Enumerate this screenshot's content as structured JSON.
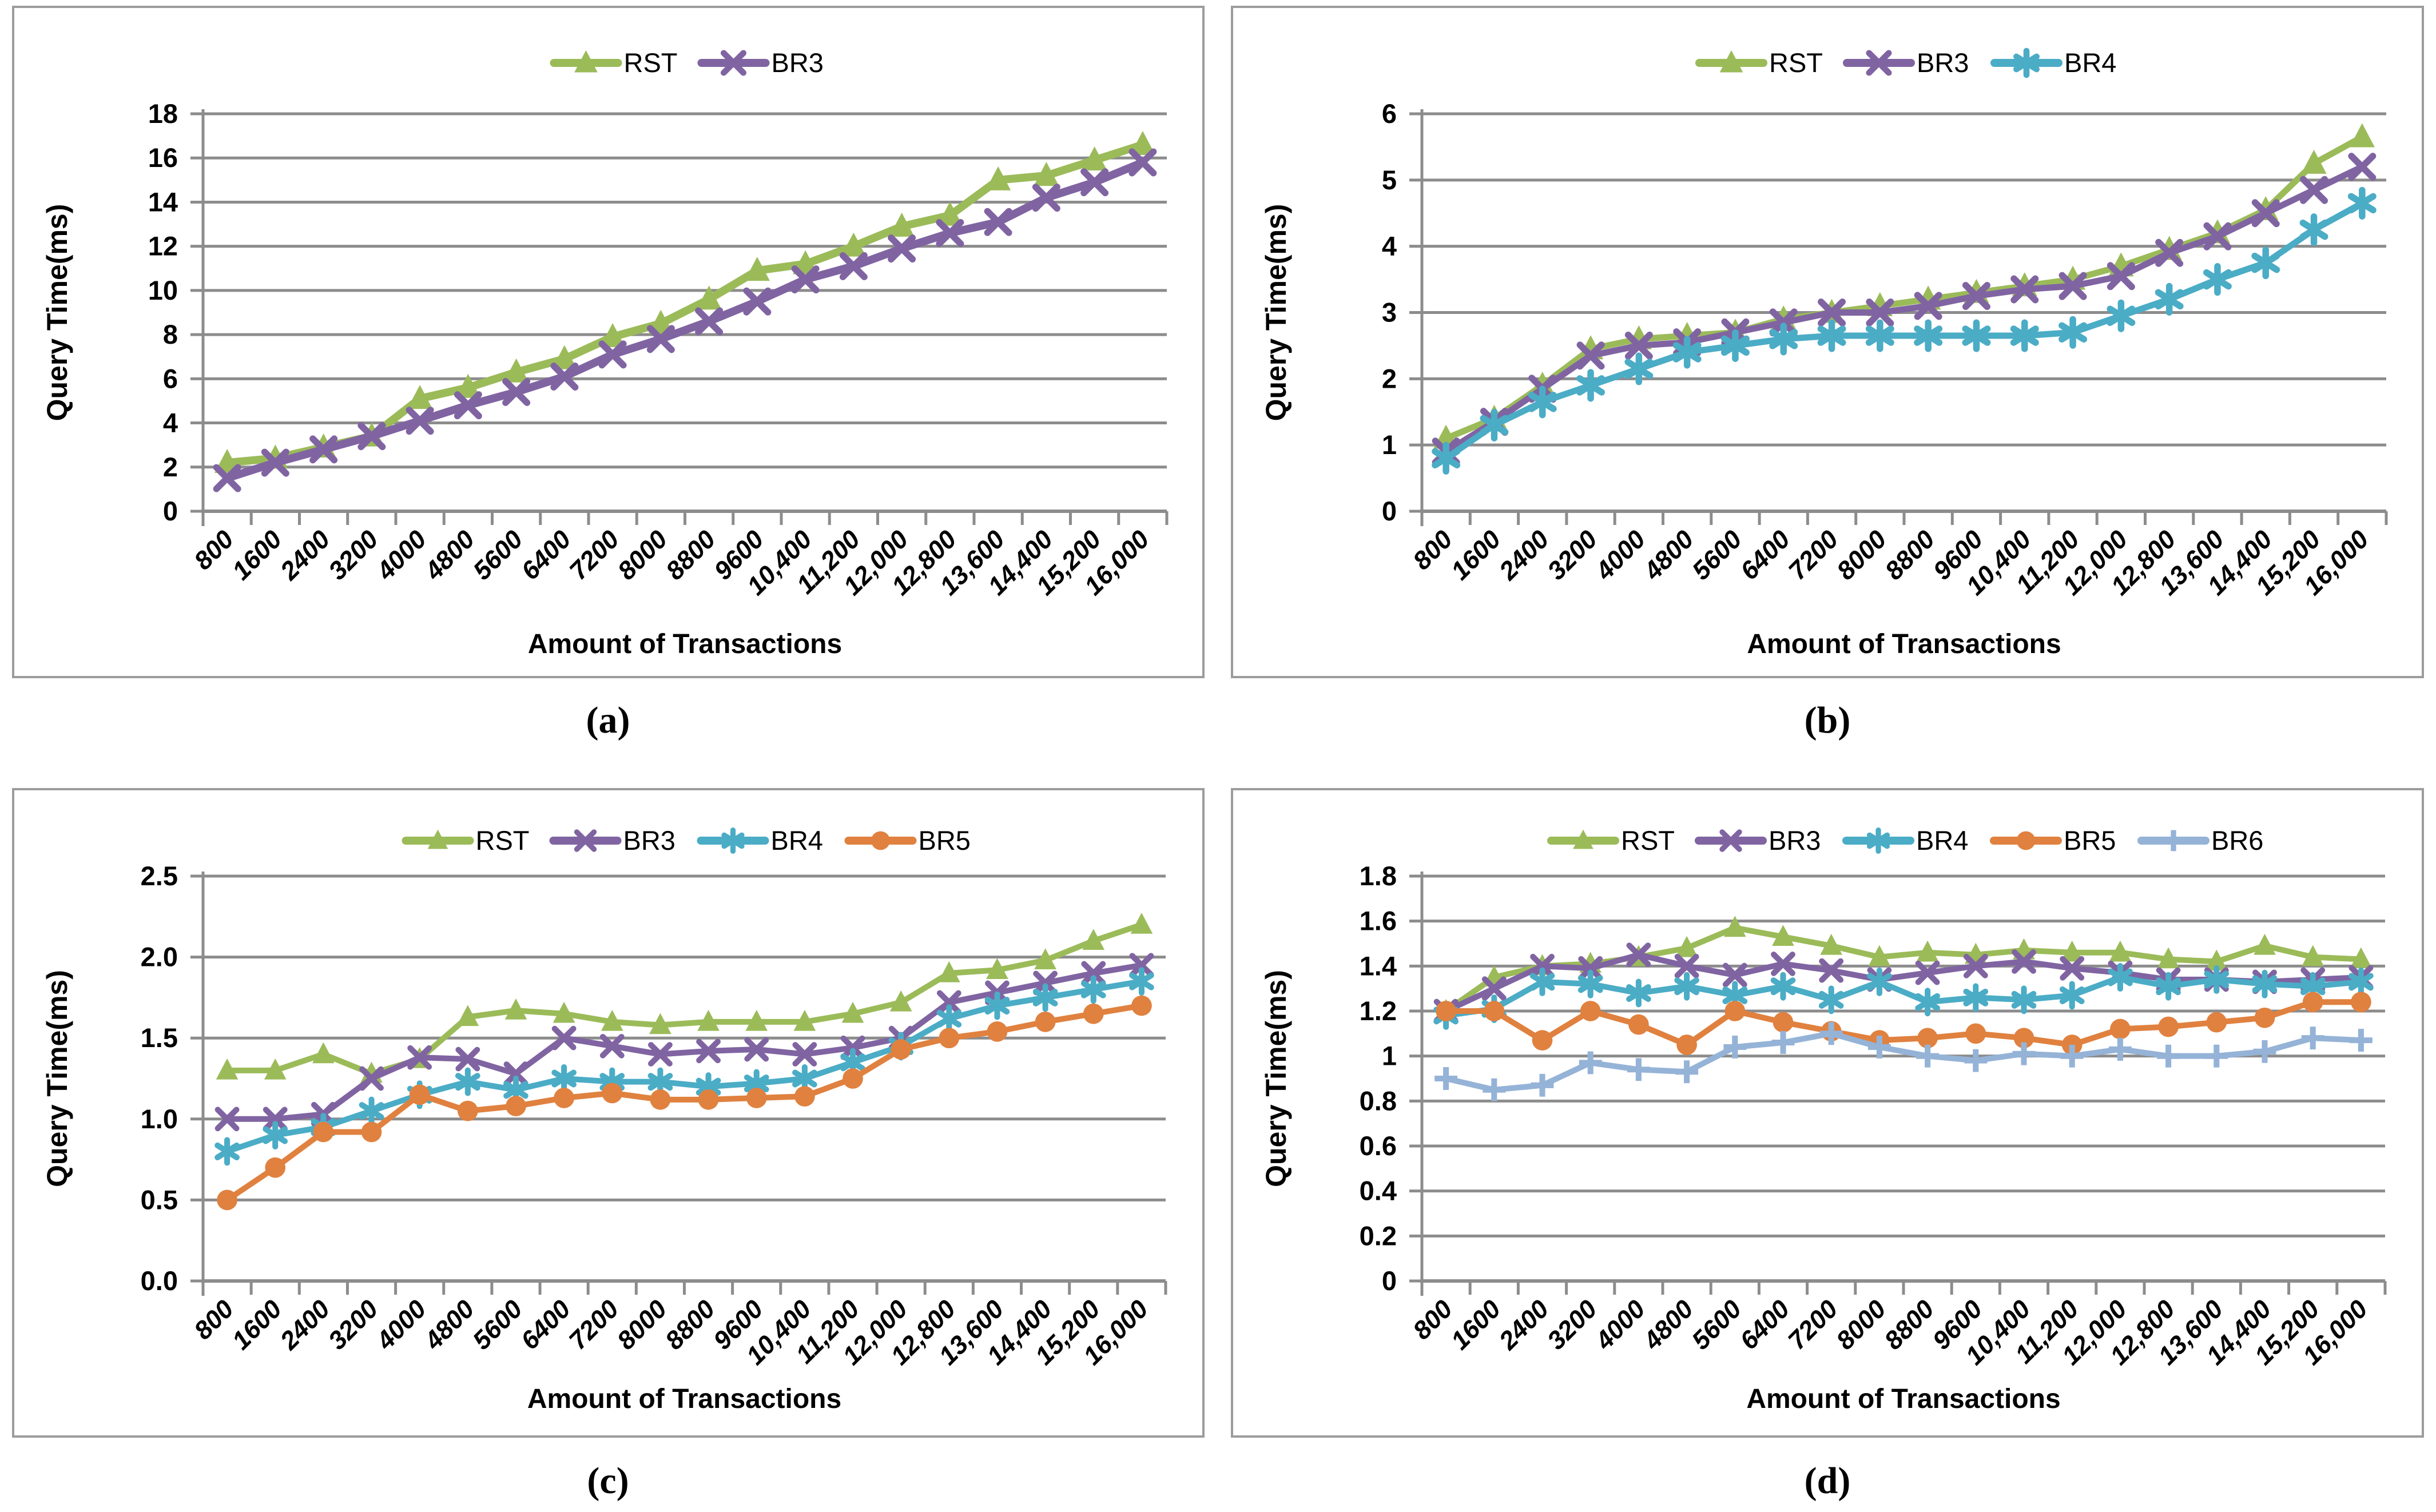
{
  "figure": {
    "background": "#ffffff",
    "grid_color": "#8c8c8c",
    "axis_color": "#8c8c8c",
    "tick_color": "#8c8c8c",
    "panel_border_color": "#9c9c9c",
    "text_color": "#000000"
  },
  "chart_data": [
    {
      "id": "a",
      "caption": "(a)",
      "type": "line",
      "title": "",
      "xlabel": "Amount of Transactions",
      "ylabel": "Query Time(ms)",
      "legend_position": "top-center",
      "grid": "horizontal",
      "ylim": [
        0,
        18
      ],
      "yticks": [
        0,
        2,
        4,
        6,
        8,
        10,
        12,
        14,
        16,
        18
      ],
      "ytick_labels": [
        "0",
        "2",
        "4",
        "6",
        "8",
        "10",
        "12",
        "14",
        "16",
        "18"
      ],
      "categories": [
        "800",
        "1600",
        "2400",
        "3200",
        "4000",
        "4800",
        "5600",
        "6400",
        "7200",
        "8000",
        "8800",
        "9600",
        "10,400",
        "11,200",
        "12,000",
        "12,800",
        "13,600",
        "14,400",
        "15,200",
        "16,000"
      ],
      "series": [
        {
          "name": "RST",
          "color": "#9BBB59",
          "marker": "triangle",
          "values": [
            2.2,
            2.4,
            2.9,
            3.4,
            5.1,
            5.6,
            6.3,
            6.9,
            7.9,
            8.5,
            9.6,
            10.9,
            11.2,
            12.0,
            12.9,
            13.4,
            15.0,
            15.2,
            15.9,
            16.6
          ]
        },
        {
          "name": "BR3",
          "color": "#8064A2",
          "marker": "x",
          "values": [
            1.5,
            2.2,
            2.8,
            3.4,
            4.1,
            4.8,
            5.4,
            6.1,
            7.1,
            7.8,
            8.6,
            9.5,
            10.5,
            11.1,
            11.9,
            12.6,
            13.1,
            14.2,
            14.9,
            15.8
          ]
        }
      ]
    },
    {
      "id": "b",
      "caption": "(b)",
      "type": "line",
      "title": "",
      "xlabel": "Amount of Transactions",
      "ylabel": "Query Time(ms)",
      "legend_position": "top-center",
      "grid": "horizontal",
      "ylim": [
        0,
        6
      ],
      "yticks": [
        0,
        1,
        2,
        3,
        4,
        5,
        6
      ],
      "ytick_labels": [
        "0",
        "1",
        "2",
        "3",
        "4",
        "5",
        "6"
      ],
      "categories": [
        "800",
        "1600",
        "2400",
        "3200",
        "4000",
        "4800",
        "5600",
        "6400",
        "7200",
        "8000",
        "8800",
        "9600",
        "10,400",
        "11,200",
        "12,000",
        "12,800",
        "13,600",
        "14,400",
        "15,200",
        "16,000"
      ],
      "series": [
        {
          "name": "RST",
          "color": "#9BBB59",
          "marker": "triangle",
          "values": [
            1.1,
            1.4,
            1.9,
            2.45,
            2.6,
            2.65,
            2.7,
            2.9,
            3.0,
            3.1,
            3.2,
            3.3,
            3.4,
            3.5,
            3.7,
            3.95,
            4.2,
            4.55,
            5.25,
            5.65
          ]
        },
        {
          "name": "BR3",
          "color": "#8064A2",
          "marker": "x",
          "values": [
            0.9,
            1.35,
            1.85,
            2.35,
            2.5,
            2.55,
            2.7,
            2.85,
            3.0,
            3.0,
            3.1,
            3.25,
            3.35,
            3.4,
            3.55,
            3.9,
            4.15,
            4.5,
            4.85,
            5.2
          ]
        },
        {
          "name": "BR4",
          "color": "#4BACC6",
          "marker": "asterisk",
          "values": [
            0.8,
            1.3,
            1.65,
            1.9,
            2.15,
            2.4,
            2.5,
            2.6,
            2.65,
            2.65,
            2.65,
            2.65,
            2.65,
            2.7,
            2.95,
            3.2,
            3.5,
            3.75,
            4.25,
            4.65
          ]
        }
      ]
    },
    {
      "id": "c",
      "caption": "(c)",
      "type": "line",
      "title": "",
      "xlabel": "Amount of Transactions",
      "ylabel": "Query Time(ms)",
      "legend_position": "top-center",
      "grid": "horizontal",
      "ylim": [
        0,
        2.5
      ],
      "yticks": [
        0,
        0.5,
        1.0,
        1.5,
        2.0,
        2.5
      ],
      "ytick_labels": [
        "0.0",
        "0.5",
        "1.0",
        "1.5",
        "2.0",
        "2.5"
      ],
      "categories": [
        "800",
        "1600",
        "2400",
        "3200",
        "4000",
        "4800",
        "5600",
        "6400",
        "7200",
        "8000",
        "8800",
        "9600",
        "10,400",
        "11,200",
        "12,000",
        "12,800",
        "13,600",
        "14,400",
        "15,200",
        "16,000"
      ],
      "series": [
        {
          "name": "RST",
          "color": "#9BBB59",
          "marker": "triangle",
          "values": [
            1.3,
            1.3,
            1.4,
            1.28,
            1.37,
            1.63,
            1.67,
            1.65,
            1.6,
            1.58,
            1.6,
            1.6,
            1.6,
            1.65,
            1.72,
            1.9,
            1.92,
            1.98,
            2.1,
            2.2
          ]
        },
        {
          "name": "BR3",
          "color": "#8064A2",
          "marker": "x",
          "values": [
            1.0,
            1.0,
            1.03,
            1.25,
            1.38,
            1.37,
            1.28,
            1.5,
            1.45,
            1.4,
            1.42,
            1.43,
            1.4,
            1.44,
            1.5,
            1.72,
            1.78,
            1.84,
            1.9,
            1.95
          ]
        },
        {
          "name": "BR4",
          "color": "#4BACC6",
          "marker": "asterisk",
          "values": [
            0.8,
            0.9,
            0.95,
            1.05,
            1.15,
            1.23,
            1.18,
            1.25,
            1.23,
            1.23,
            1.2,
            1.22,
            1.25,
            1.35,
            1.45,
            1.62,
            1.7,
            1.75,
            1.8,
            1.85
          ]
        },
        {
          "name": "BR5",
          "color": "#E0813F",
          "marker": "circle",
          "values": [
            0.5,
            0.7,
            0.92,
            0.92,
            1.15,
            1.05,
            1.08,
            1.13,
            1.16,
            1.12,
            1.12,
            1.13,
            1.14,
            1.25,
            1.43,
            1.5,
            1.54,
            1.6,
            1.65,
            1.7
          ]
        }
      ]
    },
    {
      "id": "d",
      "caption": "(d)",
      "type": "line",
      "title": "",
      "xlabel": "Amount of Transactions",
      "ylabel": "Query Time(ms)",
      "legend_position": "top-center",
      "grid": "horizontal",
      "ylim": [
        0,
        1.8
      ],
      "yticks": [
        0,
        0.2,
        0.4,
        0.6,
        0.8,
        1.0,
        1.2,
        1.4,
        1.6,
        1.8
      ],
      "ytick_labels": [
        "0",
        "0.2",
        "0.4",
        "0.6",
        "0.8",
        "1",
        "1.2",
        "1.4",
        "1.6",
        "1.8"
      ],
      "categories": [
        "800",
        "1600",
        "2400",
        "3200",
        "4000",
        "4800",
        "5600",
        "6400",
        "7200",
        "8000",
        "8800",
        "9600",
        "10,400",
        "11,200",
        "12,000",
        "12,800",
        "13,600",
        "14,400",
        "15,200",
        "16,000"
      ],
      "series": [
        {
          "name": "RST",
          "color": "#9BBB59",
          "marker": "triangle",
          "values": [
            1.2,
            1.35,
            1.4,
            1.41,
            1.44,
            1.48,
            1.57,
            1.53,
            1.49,
            1.44,
            1.46,
            1.45,
            1.47,
            1.46,
            1.46,
            1.43,
            1.42,
            1.49,
            1.44,
            1.43
          ]
        },
        {
          "name": "BR3",
          "color": "#8064A2",
          "marker": "x",
          "values": [
            1.2,
            1.3,
            1.4,
            1.39,
            1.45,
            1.4,
            1.36,
            1.41,
            1.38,
            1.34,
            1.37,
            1.4,
            1.42,
            1.39,
            1.37,
            1.34,
            1.34,
            1.33,
            1.34,
            1.35
          ]
        },
        {
          "name": "BR4",
          "color": "#4BACC6",
          "marker": "asterisk",
          "values": [
            1.18,
            1.21,
            1.33,
            1.32,
            1.28,
            1.31,
            1.27,
            1.31,
            1.25,
            1.33,
            1.24,
            1.26,
            1.25,
            1.27,
            1.35,
            1.31,
            1.34,
            1.32,
            1.31,
            1.33
          ]
        },
        {
          "name": "BR5",
          "color": "#E0813F",
          "marker": "circle",
          "values": [
            1.2,
            1.2,
            1.07,
            1.2,
            1.14,
            1.05,
            1.2,
            1.15,
            1.11,
            1.07,
            1.08,
            1.1,
            1.08,
            1.05,
            1.12,
            1.13,
            1.15,
            1.17,
            1.24,
            1.24
          ]
        },
        {
          "name": "BR6",
          "color": "#95B3D7",
          "marker": "plus",
          "values": [
            0.9,
            0.85,
            0.87,
            0.97,
            0.94,
            0.93,
            1.04,
            1.06,
            1.1,
            1.04,
            1.0,
            0.98,
            1.01,
            1.0,
            1.03,
            1.0,
            1.0,
            1.02,
            1.08,
            1.07
          ]
        }
      ]
    }
  ]
}
